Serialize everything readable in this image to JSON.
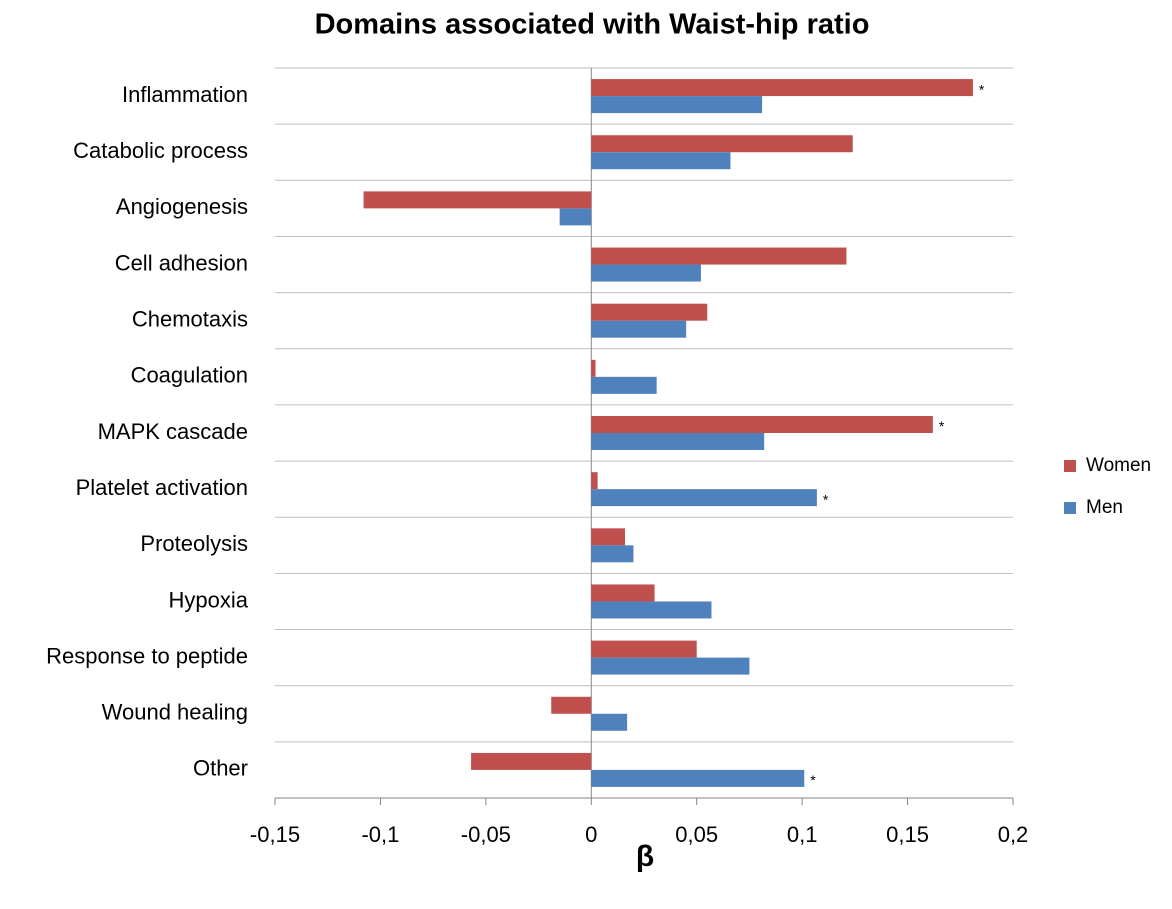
{
  "chart_data": {
    "type": "hbar",
    "title": "Domains associated with Waist-hip ratio",
    "x_label": "β",
    "categories": [
      "Inflammation",
      "Catabolic process",
      "Angiogenesis",
      "Cell adhesion",
      "Chemotaxis",
      "Coagulation",
      "MAPK cascade",
      "Platelet activation",
      "Proteolysis",
      "Hypoxia",
      "Response to peptide",
      "Wound healing",
      "Other"
    ],
    "series": [
      {
        "name": "Women",
        "color": "#c0504d",
        "values": [
          0.181,
          0.124,
          -0.108,
          0.121,
          0.055,
          0.002,
          0.162,
          0.003,
          0.016,
          0.03,
          0.05,
          -0.019,
          -0.057
        ]
      },
      {
        "name": "Men",
        "color": "#4f81bd",
        "values": [
          0.081,
          0.066,
          -0.015,
          0.052,
          0.045,
          0.031,
          0.082,
          0.107,
          0.02,
          0.057,
          0.075,
          0.017,
          0.101
        ]
      }
    ],
    "annotations": [
      {
        "text": "*",
        "series": 0,
        "index": 0
      },
      {
        "text": "*",
        "series": 0,
        "index": 6
      },
      {
        "text": "*",
        "series": 1,
        "index": 7
      },
      {
        "text": "*",
        "series": 1,
        "index": 12
      }
    ],
    "xlim": [
      -0.15,
      0.2
    ],
    "xticks": [
      {
        "value": -0.15,
        "label": "-0,15"
      },
      {
        "value": -0.1,
        "label": "-0,1"
      },
      {
        "value": -0.05,
        "label": "-0,05"
      },
      0,
      {
        "value": 0.05,
        "label": "0,05"
      },
      {
        "value": 0.1,
        "label": "0,1"
      },
      {
        "value": 0.15,
        "label": "0,15"
      },
      {
        "value": 0.2,
        "label": "0,2"
      }
    ],
    "grid": true,
    "legend": "right"
  }
}
